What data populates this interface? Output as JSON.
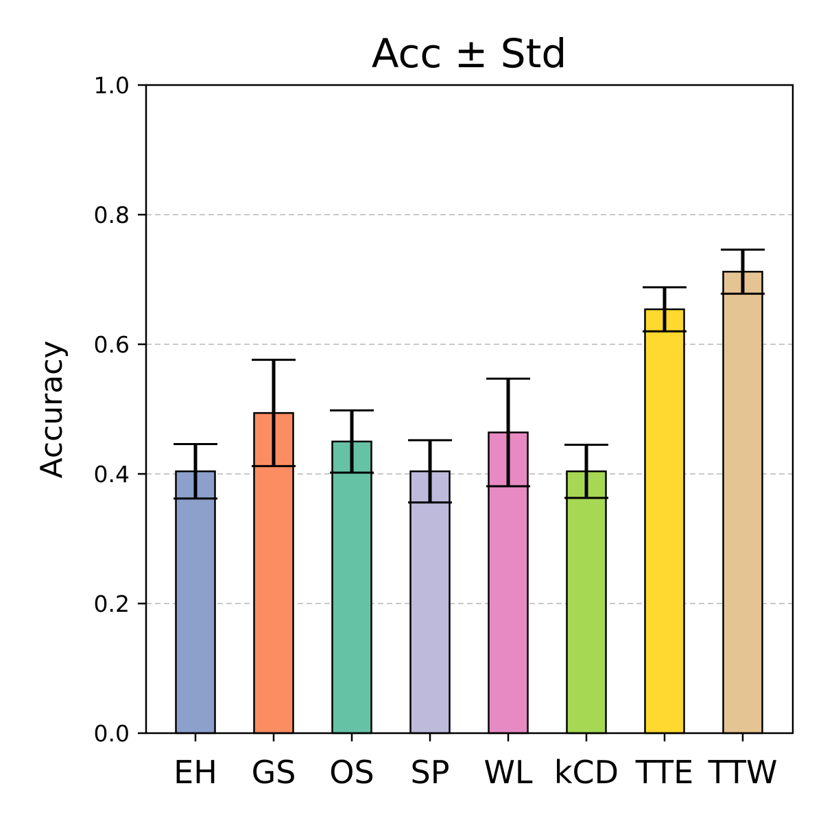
{
  "chart_data": {
    "type": "bar",
    "title": "Acc ± Std",
    "xlabel": "",
    "ylabel": "Accuracy",
    "ylim": [
      0,
      1.0
    ],
    "yticks": [
      "0.0",
      "0.2",
      "0.4",
      "0.6",
      "0.8",
      "1.0"
    ],
    "ytick_values": [
      0,
      0.2,
      0.4,
      0.6,
      0.8,
      1.0
    ],
    "grid": "y dashed",
    "categories": [
      "EH",
      "GS",
      "OS",
      "SP",
      "WL",
      "kCD",
      "TTE",
      "TTW"
    ],
    "values": [
      0.404,
      0.494,
      0.45,
      0.404,
      0.464,
      0.404,
      0.654,
      0.712
    ],
    "errors": [
      0.042,
      0.082,
      0.048,
      0.048,
      0.083,
      0.041,
      0.034,
      0.034
    ],
    "colors": [
      "#8da0cb",
      "#fc8d62",
      "#66c2a5",
      "#bebadc",
      "#e78ac3",
      "#a6d854",
      "#ffd92f",
      "#e5c494"
    ]
  }
}
